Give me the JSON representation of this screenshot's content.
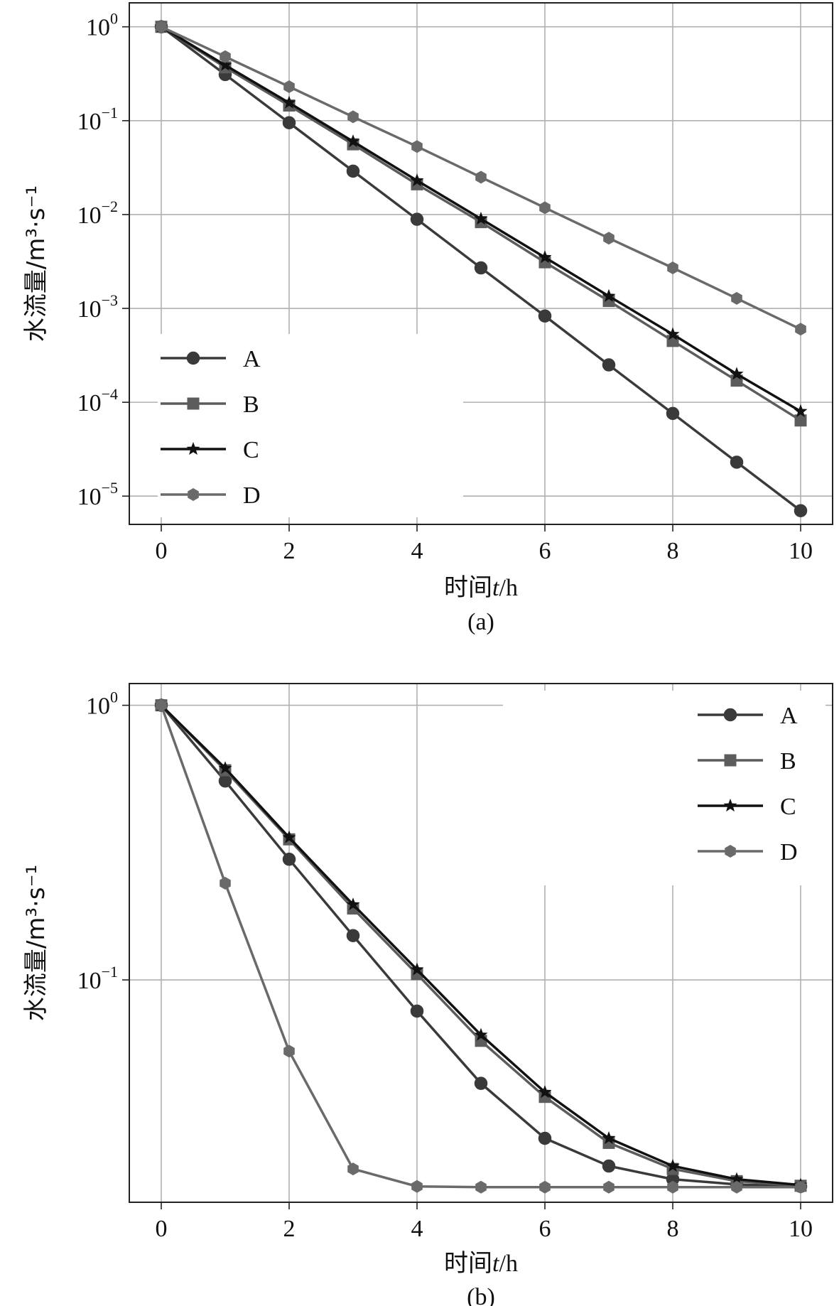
{
  "chart_data": [
    {
      "type": "line",
      "caption": "(a)",
      "xlabel": "时间t/h",
      "xlabel_prefix": "时间",
      "xlabel_var": "t",
      "xlabel_suffix": "/h",
      "ylabel": "水流量/m³·s⁻¹",
      "yscale": "log",
      "xlim": [
        -0.5,
        10.5
      ],
      "ylim": [
        5e-06,
        1.8
      ],
      "xticks": [
        0,
        2,
        4,
        6,
        8,
        10
      ],
      "yticks": [
        {
          "value": 1,
          "base": "10",
          "exp": "0"
        },
        {
          "value": 0.1,
          "base": "10",
          "exp": "−1"
        },
        {
          "value": 0.01,
          "base": "10",
          "exp": "−2"
        },
        {
          "value": 0.001,
          "base": "10",
          "exp": "−3"
        },
        {
          "value": 0.0001,
          "base": "10",
          "exp": "−4"
        },
        {
          "value": 1e-05,
          "base": "10",
          "exp": "−5"
        }
      ],
      "grid": true,
      "legend": "left",
      "x": [
        0,
        1,
        2,
        3,
        4,
        5,
        6,
        7,
        8,
        9,
        10
      ],
      "series": [
        {
          "name": "A",
          "marker": "circle",
          "color": "#3a3a3a",
          "values": [
            1,
            0.31,
            0.095,
            0.029,
            0.0089,
            0.0027,
            0.00083,
            0.00025,
            7.6e-05,
            2.3e-05,
            7e-06
          ]
        },
        {
          "name": "B",
          "marker": "square",
          "color": "#5c5c5c",
          "values": [
            1,
            0.37,
            0.145,
            0.056,
            0.021,
            0.0083,
            0.0031,
            0.0012,
            0.00045,
            0.00017,
            6.4e-05
          ]
        },
        {
          "name": "C",
          "marker": "star",
          "color": "#111111",
          "values": [
            1,
            0.39,
            0.155,
            0.06,
            0.023,
            0.009,
            0.0035,
            0.00135,
            0.00053,
            0.0002,
            8e-05
          ]
        },
        {
          "name": "D",
          "marker": "hexagon",
          "color": "#6a6a6a",
          "values": [
            1,
            0.48,
            0.23,
            0.11,
            0.053,
            0.025,
            0.0118,
            0.0056,
            0.0027,
            0.00128,
            0.0006
          ]
        }
      ]
    },
    {
      "type": "line",
      "caption": "(b)",
      "xlabel": "时间t/h",
      "xlabel_prefix": "时间",
      "xlabel_var": "t",
      "xlabel_suffix": "/h",
      "ylabel": "水流量/m³·s⁻¹",
      "yscale": "log",
      "xlim": [
        -0.5,
        10.5
      ],
      "ylim": [
        0.0155,
        1.2
      ],
      "xticks": [
        0,
        2,
        4,
        6,
        8,
        10
      ],
      "yticks": [
        {
          "value": 1,
          "base": "10",
          "exp": "0"
        },
        {
          "value": 0.1,
          "base": "10",
          "exp": "−1"
        }
      ],
      "grid": true,
      "legend": "top-right",
      "x": [
        0,
        1,
        2,
        3,
        4,
        5,
        6,
        7,
        8,
        9,
        10
      ],
      "series": [
        {
          "name": "A",
          "marker": "circle",
          "color": "#3a3a3a",
          "values": [
            1,
            0.53,
            0.275,
            0.145,
            0.077,
            0.042,
            0.0265,
            0.021,
            0.0188,
            0.018,
            0.0177
          ]
        },
        {
          "name": "B",
          "marker": "square",
          "color": "#5c5c5c",
          "values": [
            1,
            0.58,
            0.325,
            0.182,
            0.105,
            0.06,
            0.0375,
            0.0255,
            0.0205,
            0.0185,
            0.0178
          ]
        },
        {
          "name": "C",
          "marker": "star",
          "color": "#111111",
          "values": [
            1,
            0.59,
            0.33,
            0.188,
            0.109,
            0.063,
            0.039,
            0.0265,
            0.021,
            0.0188,
            0.0179
          ]
        },
        {
          "name": "D",
          "marker": "hexagon",
          "color": "#6a6a6a",
          "values": [
            1,
            0.225,
            0.055,
            0.0205,
            0.0177,
            0.0176,
            0.0176,
            0.0176,
            0.0176,
            0.0176,
            0.0176
          ]
        }
      ]
    }
  ]
}
